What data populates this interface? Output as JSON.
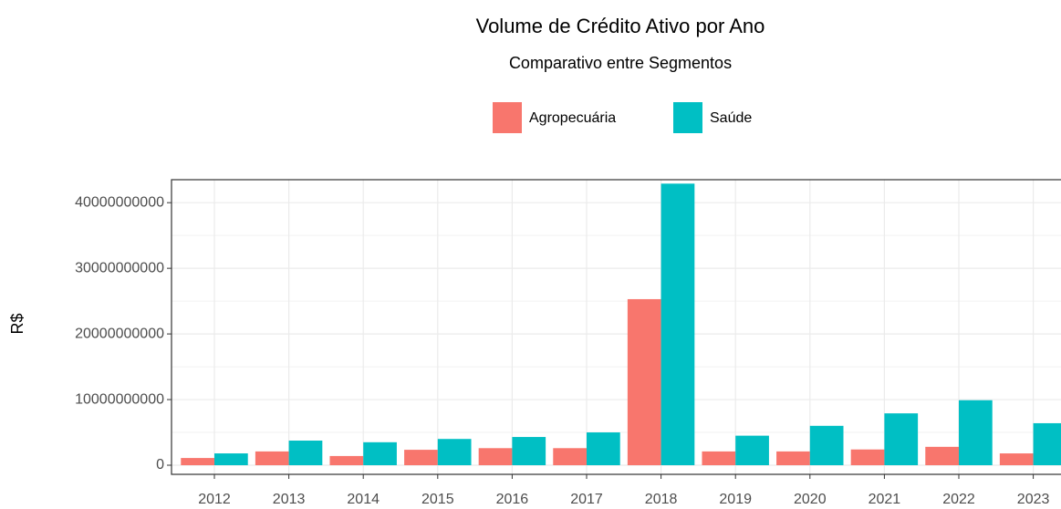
{
  "chart_data": {
    "type": "bar",
    "title": "Volume de Crédito Ativo por Ano",
    "subtitle": "Comparativo entre Segmentos",
    "y_label": "R$",
    "categories": [
      "2012",
      "2013",
      "2014",
      "2015",
      "2016",
      "2017",
      "2018",
      "2019",
      "2020",
      "2021",
      "2022",
      "2023"
    ],
    "series": [
      {
        "name": "Agropecuária",
        "color": "#F8766D",
        "values": [
          1100000000,
          2100000000,
          1400000000,
          2350000000,
          2600000000,
          2600000000,
          25300000000,
          2100000000,
          2100000000,
          2400000000,
          2800000000,
          1800000000
        ]
      },
      {
        "name": "Saúde",
        "color": "#00BFC4",
        "values": [
          1800000000,
          3750000000,
          3500000000,
          4000000000,
          4300000000,
          5000000000,
          42900000000,
          4500000000,
          6000000000,
          7900000000,
          9900000000,
          6400000000
        ]
      }
    ],
    "ylim": [
      -1390000000,
      43500000000
    ],
    "yticks": [
      0,
      10000000000,
      20000000000,
      30000000000,
      40000000000
    ],
    "grid": true,
    "legend": "top"
  }
}
